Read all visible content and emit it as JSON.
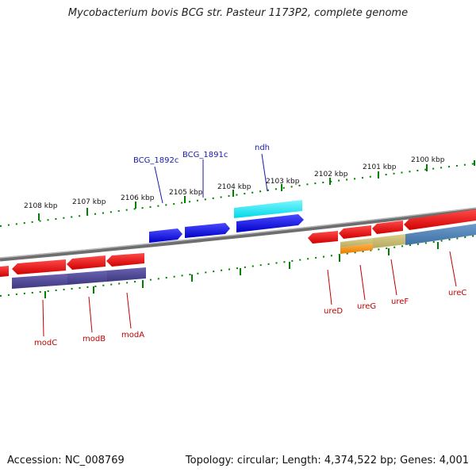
{
  "title": "Mycobacterium bovis BCG str. Pasteur 1173P2, complete genome",
  "footer": {
    "accession": "Accession: NC_008769",
    "summary": "Topology: circular; Length: 4,374,522 bp; Genes: 4,001"
  },
  "ticks": {
    "t2108": "2108 kbp",
    "t2107": "2107 kbp",
    "t2106": "2106 kbp",
    "t2105": "2105 kbp",
    "t2104": "2104 kbp",
    "t2103": "2103 kbp",
    "t2102": "2102 kbp",
    "t2101": "2101 kbp",
    "t2100": "2100 kbp"
  },
  "genes": {
    "bcg1892c": "BCG_1892c",
    "bcg1891c": "BCG_1891c",
    "ndh": "ndh",
    "modC": "modC",
    "modB": "modB",
    "modA": "modA",
    "ureD": "ureD",
    "ureG": "ureG",
    "ureF": "ureF",
    "ureC": "ureC"
  },
  "colors": {
    "forward_gene": "#0000ee",
    "reverse_gene": "#ee0000",
    "cds_highlight": "#00e5ee",
    "backbone": "#888888",
    "tick": "#008000"
  }
}
